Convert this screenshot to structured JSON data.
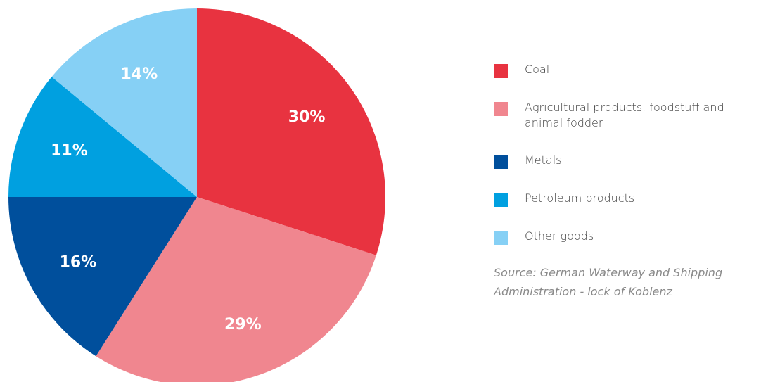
{
  "chart_data": {
    "type": "pie",
    "slices": [
      {
        "name": "Coal",
        "value": 30,
        "label": "30%",
        "color": "#e83340"
      },
      {
        "name": "Agricultural products, foodstuff and animal fodder",
        "value": 29,
        "label": "29%",
        "color": "#f0868f"
      },
      {
        "name": "Metals",
        "value": 16,
        "label": "16%",
        "color": "#004f9c"
      },
      {
        "name": "Petroleum products",
        "value": 11,
        "label": "11%",
        "color": "#00a0e0"
      },
      {
        "name": "Other goods",
        "value": 14,
        "label": "14%",
        "color": "#86d0f5"
      }
    ],
    "legend_placement": "right",
    "start_angle": "12 o'clock",
    "direction": "clockwise"
  },
  "source_note": "Source: German Waterway and Shipping Administration - lock of Koblenz"
}
